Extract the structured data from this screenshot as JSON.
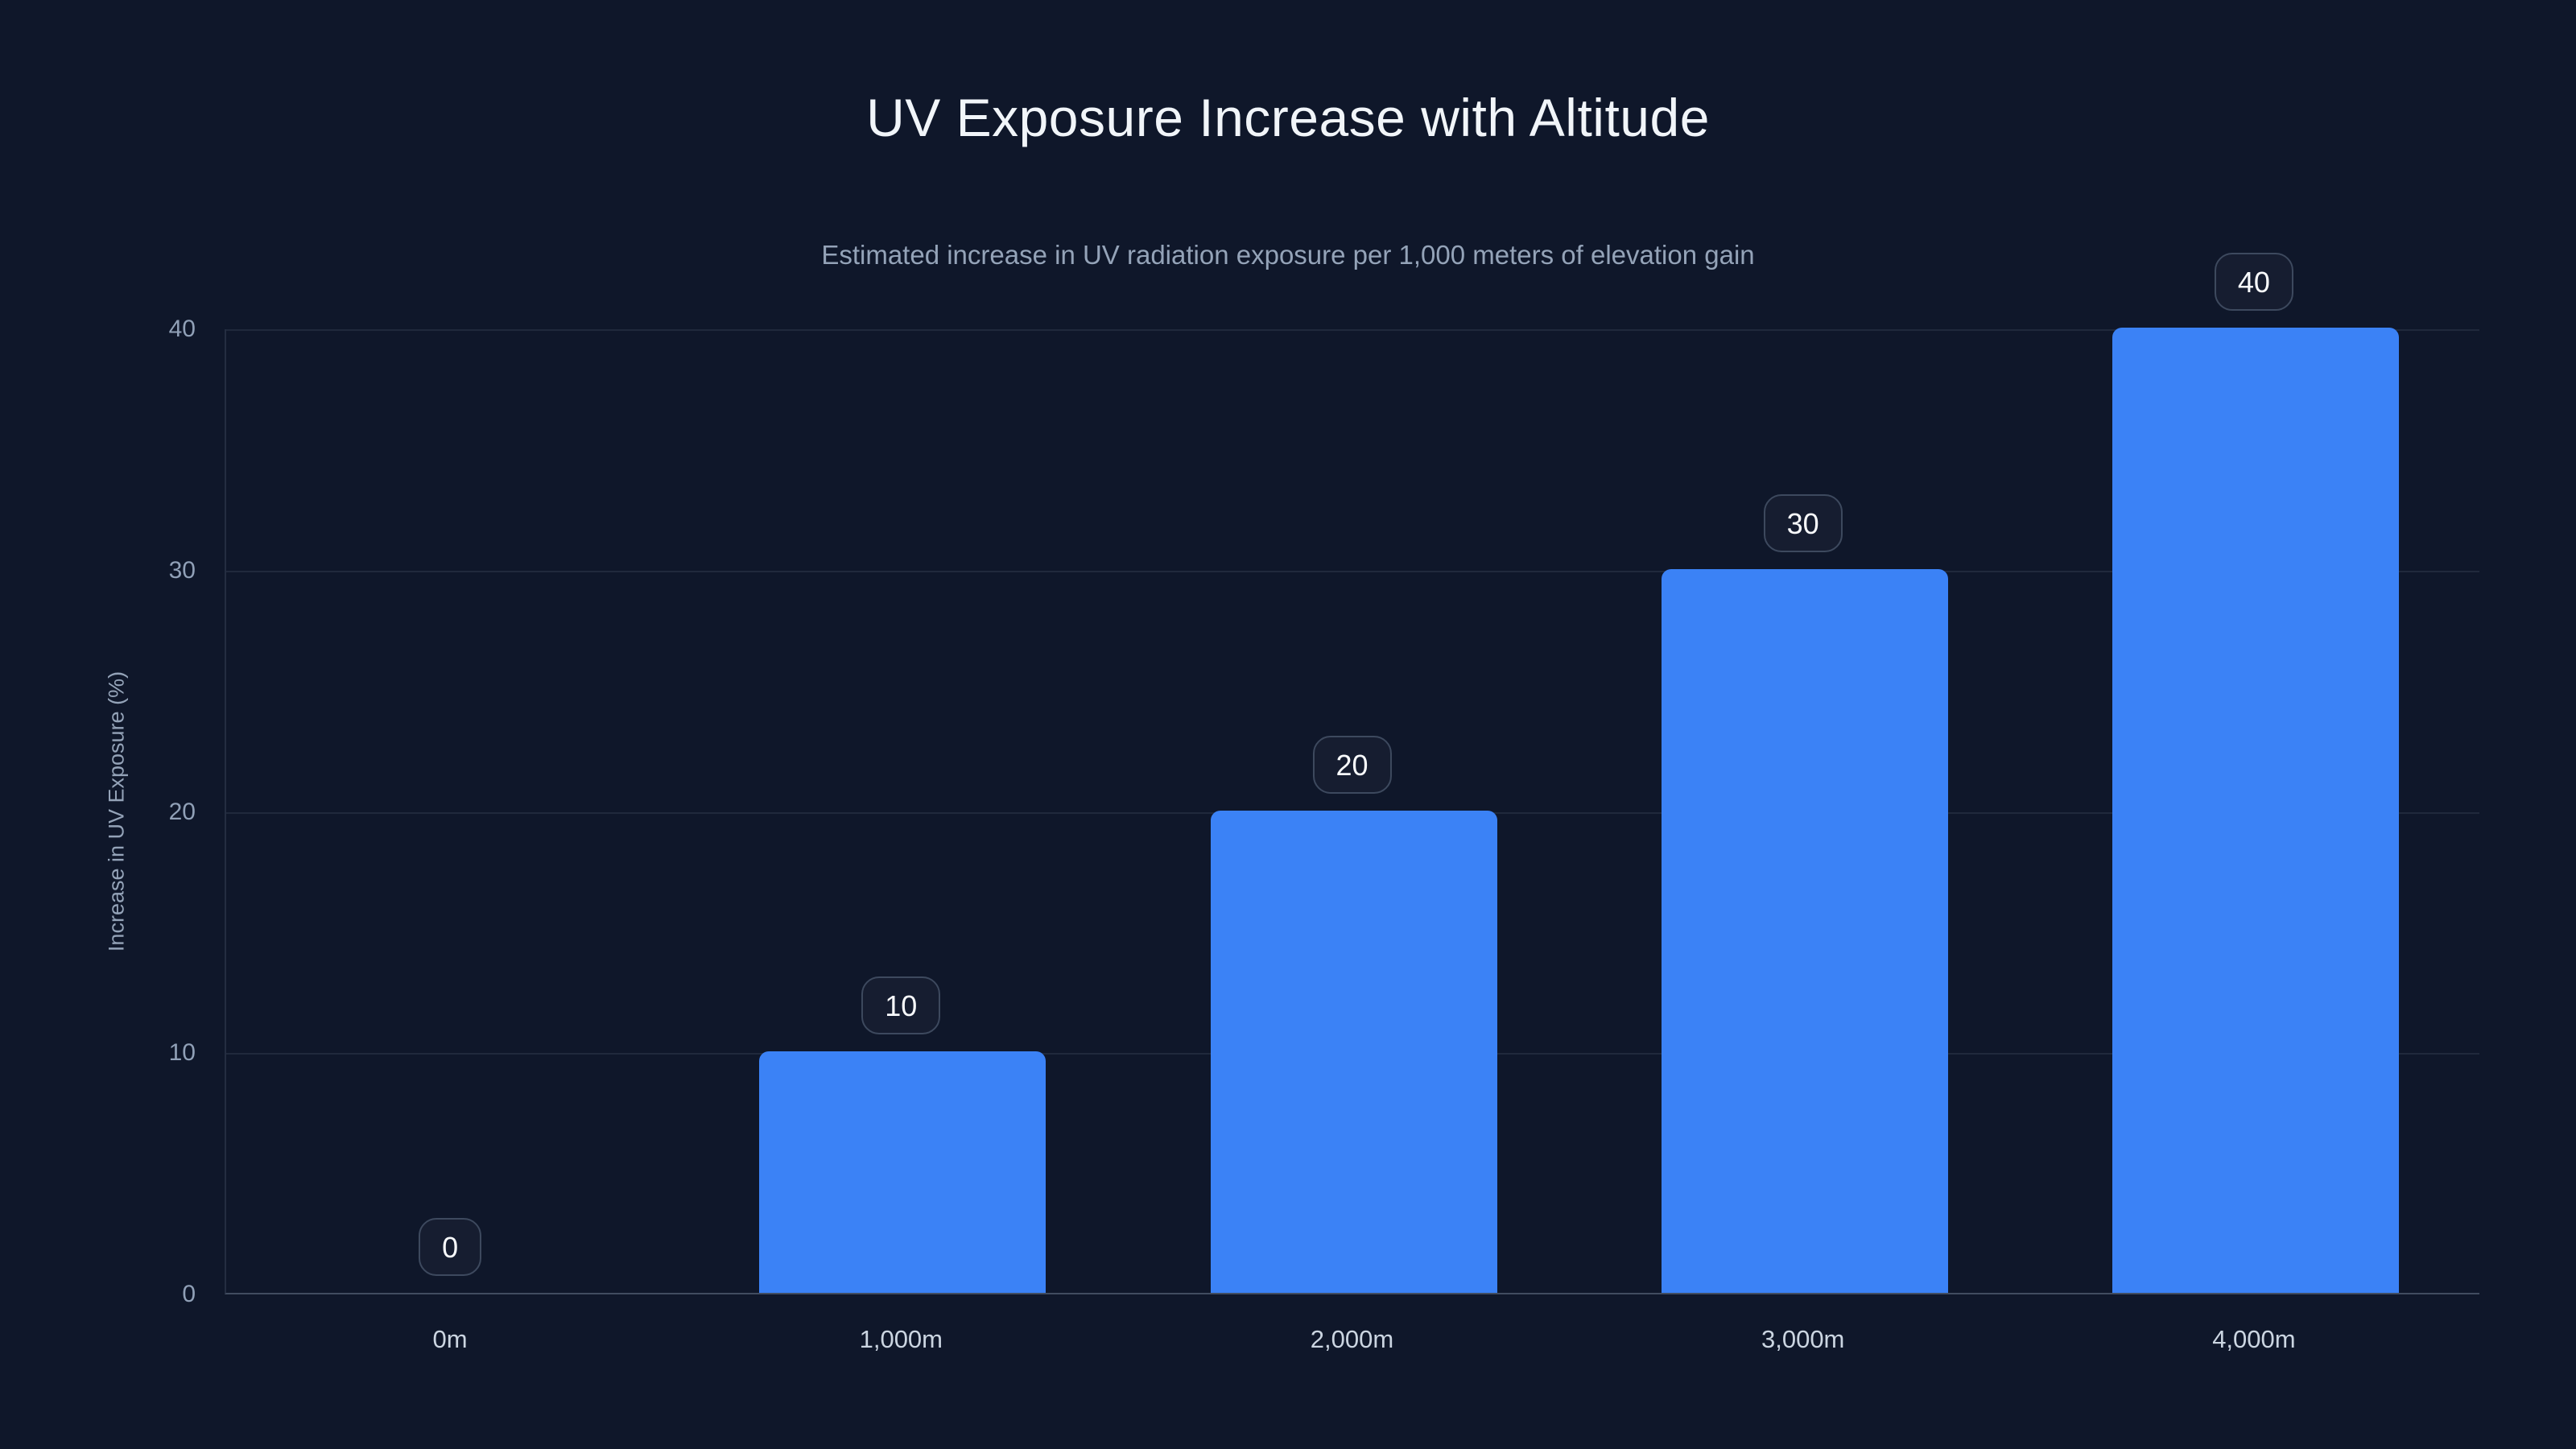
{
  "title": "UV Exposure Increase with Altitude",
  "subtitle": "Estimated increase in UV radiation exposure per 1,000 meters of elevation gain",
  "y_axis": {
    "title": "Increase in UV Exposure (%)",
    "tick_labels": [
      "0",
      "10",
      "20",
      "30",
      "40"
    ]
  },
  "x_axis": {
    "tick_labels": [
      "0m",
      "1,000m",
      "2,000m",
      "3,000m",
      "4,000m"
    ]
  },
  "value_badges": [
    "0",
    "10",
    "20",
    "30",
    "40"
  ],
  "colors": {
    "background": "#0f172a",
    "bar": "#3b82f6",
    "title_text": "#f1f5f9",
    "subtitle_text": "#94a3b8",
    "y_tick_text": "#90a0b7",
    "x_tick_text": "#cbd5e1",
    "gridline": "rgba(148,163,184,0.13)",
    "baseline": "rgba(148,163,184,0.38)",
    "badge_border": "#3d495e",
    "badge_text": "#f8fafc"
  },
  "chart_data": {
    "type": "bar",
    "title": "UV Exposure Increase with Altitude",
    "subtitle": "Estimated increase in UV radiation exposure per 1,000 meters of elevation gain",
    "categories": [
      "0m",
      "1,000m",
      "2,000m",
      "3,000m",
      "4,000m"
    ],
    "values": [
      0,
      10,
      20,
      30,
      40
    ],
    "data_labels": [
      "0",
      "10",
      "20",
      "30",
      "40"
    ],
    "xlabel": "",
    "ylabel": "Increase in UV Exposure (%)",
    "ylim": [
      0,
      40
    ],
    "yticks": [
      0,
      10,
      20,
      30,
      40
    ],
    "grid": "horizontal",
    "legend": "none",
    "bar_color": "#3b82f6"
  }
}
